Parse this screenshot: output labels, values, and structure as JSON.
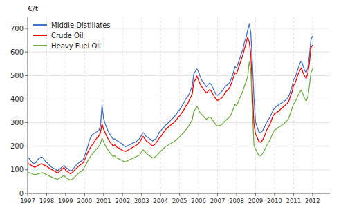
{
  "chart_data": {
    "type": "line",
    "title": "€/t",
    "x": [
      1997,
      1997.0833,
      1997.1667,
      1997.25,
      1997.3333,
      1997.4167,
      1997.5,
      1997.5833,
      1997.6667,
      1997.75,
      1997.8333,
      1997.9167,
      1998,
      1998.0833,
      1998.1667,
      1998.25,
      1998.3333,
      1998.4167,
      1998.5,
      1998.5833,
      1998.6667,
      1998.75,
      1998.8333,
      1998.9167,
      1999,
      1999.0833,
      1999.1667,
      1999.25,
      1999.3333,
      1999.4167,
      1999.5,
      1999.5833,
      1999.6667,
      1999.75,
      1999.8333,
      1999.9167,
      2000,
      2000.0833,
      2000.1667,
      2000.25,
      2000.3333,
      2000.4167,
      2000.5,
      2000.5833,
      2000.6667,
      2000.75,
      2000.8333,
      2000.9167,
      2001,
      2001.0833,
      2001.1667,
      2001.25,
      2001.3333,
      2001.4167,
      2001.5,
      2001.5833,
      2001.6667,
      2001.75,
      2001.8333,
      2001.9167,
      2002,
      2002.0833,
      2002.1667,
      2002.25,
      2002.3333,
      2002.4167,
      2002.5,
      2002.5833,
      2002.6667,
      2002.75,
      2002.8333,
      2002.9167,
      2003,
      2003.0833,
      2003.1667,
      2003.25,
      2003.3333,
      2003.4167,
      2003.5,
      2003.5833,
      2003.6667,
      2003.75,
      2003.8333,
      2003.9167,
      2004,
      2004.0833,
      2004.1667,
      2004.25,
      2004.3333,
      2004.4167,
      2004.5,
      2004.5833,
      2004.6667,
      2004.75,
      2004.8333,
      2004.9167,
      2005,
      2005.0833,
      2005.1667,
      2005.25,
      2005.3333,
      2005.4167,
      2005.5,
      2005.5833,
      2005.6667,
      2005.75,
      2005.8333,
      2005.9167,
      2006,
      2006.0833,
      2006.1667,
      2006.25,
      2006.3333,
      2006.4167,
      2006.5,
      2006.5833,
      2006.6667,
      2006.75,
      2006.8333,
      2006.9167,
      2007,
      2007.0833,
      2007.1667,
      2007.25,
      2007.3333,
      2007.4167,
      2007.5,
      2007.5833,
      2007.6667,
      2007.75,
      2007.8333,
      2007.9167,
      2008,
      2008.0833,
      2008.1667,
      2008.25,
      2008.3333,
      2008.4167,
      2008.5,
      2008.5833,
      2008.6667,
      2008.75,
      2008.8333,
      2008.9167,
      2009,
      2009.0833,
      2009.1667,
      2009.25,
      2009.3333,
      2009.4167,
      2009.5,
      2009.5833,
      2009.6667,
      2009.75,
      2009.8333,
      2009.9167,
      2010,
      2010.0833,
      2010.1667,
      2010.25,
      2010.3333,
      2010.4167,
      2010.5,
      2010.5833,
      2010.6667,
      2010.75,
      2010.8333,
      2010.9167,
      2011,
      2011.0833,
      2011.1667,
      2011.25,
      2011.3333,
      2011.4167,
      2011.5,
      2011.5833,
      2011.6667,
      2011.75,
      2011.8333,
      2011.9167,
      2012
    ],
    "series": [
      {
        "name": "Middle Distillates",
        "color": "#4472C4",
        "values": [
          150,
          148,
          138,
          130,
          128,
          130,
          140,
          148,
          152,
          155,
          148,
          138,
          132,
          126,
          118,
          112,
          108,
          104,
          100,
          97,
          102,
          108,
          114,
          118,
          110,
          106,
          100,
          96,
          98,
          105,
          115,
          122,
          128,
          134,
          138,
          142,
          160,
          178,
          200,
          225,
          240,
          250,
          255,
          260,
          262,
          268,
          285,
          375,
          318,
          295,
          278,
          262,
          250,
          240,
          230,
          232,
          225,
          222,
          218,
          212,
          208,
          200,
          198,
          202,
          205,
          208,
          212,
          215,
          218,
          222,
          228,
          235,
          248,
          258,
          252,
          240,
          238,
          232,
          228,
          222,
          228,
          232,
          242,
          258,
          265,
          272,
          280,
          288,
          295,
          300,
          308,
          315,
          320,
          328,
          336,
          348,
          355,
          365,
          378,
          388,
          402,
          408,
          422,
          438,
          455,
          508,
          518,
          528,
          515,
          496,
          480,
          472,
          462,
          452,
          462,
          468,
          462,
          448,
          432,
          420,
          416,
          422,
          428,
          435,
          445,
          455,
          460,
          465,
          475,
          492,
          512,
          538,
          532,
          552,
          572,
          592,
          612,
          642,
          662,
          692,
          718,
          682,
          552,
          402,
          302,
          282,
          262,
          257,
          262,
          272,
          287,
          302,
          312,
          322,
          337,
          352,
          362,
          368,
          373,
          378,
          382,
          386,
          390,
          396,
          402,
          412,
          432,
          452,
          482,
          492,
          512,
          532,
          552,
          562,
          542,
          522,
          512,
          532,
          582,
          652,
          668
        ]
      },
      {
        "name": "Crude Oil",
        "color": "#FF0000",
        "values": [
          128,
          124,
          120,
          116,
          112,
          112,
          116,
          120,
          124,
          126,
          122,
          118,
          116,
          110,
          106,
          102,
          98,
          94,
          90,
          87,
          92,
          98,
          104,
          110,
          98,
          93,
          88,
          84,
          88,
          94,
          102,
          108,
          114,
          120,
          124,
          130,
          142,
          158,
          174,
          188,
          198,
          208,
          218,
          228,
          238,
          244,
          258,
          295,
          272,
          258,
          242,
          230,
          218,
          210,
          202,
          206,
          198,
          194,
          192,
          186,
          182,
          180,
          178,
          182,
          186,
          190,
          194,
          198,
          202,
          206,
          212,
          220,
          232,
          242,
          232,
          222,
          218,
          212,
          206,
          202,
          206,
          212,
          222,
          234,
          240,
          250,
          260,
          270,
          276,
          282,
          288,
          294,
          298,
          305,
          312,
          322,
          328,
          338,
          348,
          358,
          372,
          378,
          394,
          408,
          422,
          472,
          482,
          498,
          480,
          464,
          452,
          442,
          434,
          426,
          434,
          440,
          434,
          422,
          410,
          400,
          394,
          398,
          402,
          408,
          418,
          430,
          436,
          442,
          454,
          472,
          492,
          512,
          508,
          528,
          548,
          568,
          588,
          614,
          638,
          662,
          642,
          592,
          432,
          292,
          252,
          238,
          222,
          217,
          222,
          234,
          250,
          268,
          280,
          292,
          310,
          328,
          338,
          342,
          346,
          352,
          358,
          364,
          370,
          376,
          382,
          392,
          412,
          430,
          458,
          468,
          488,
          508,
          522,
          532,
          512,
          498,
          488,
          508,
          552,
          618,
          630
        ]
      },
      {
        "name": "Heavy Fuel Oil",
        "color": "#70AD47",
        "values": [
          90,
          88,
          86,
          84,
          80,
          80,
          82,
          84,
          86,
          88,
          86,
          84,
          80,
          76,
          73,
          70,
          67,
          64,
          62,
          60,
          64,
          68,
          72,
          76,
          68,
          64,
          60,
          57,
          60,
          64,
          72,
          78,
          84,
          90,
          94,
          100,
          112,
          124,
          138,
          150,
          160,
          168,
          176,
          185,
          193,
          200,
          210,
          235,
          218,
          204,
          192,
          182,
          172,
          164,
          156,
          160,
          152,
          148,
          146,
          142,
          138,
          136,
          134,
          138,
          142,
          145,
          148,
          150,
          154,
          157,
          160,
          165,
          178,
          185,
          178,
          170,
          165,
          160,
          155,
          150,
          153,
          157,
          164,
          172,
          178,
          185,
          192,
          198,
          202,
          206,
          210,
          214,
          218,
          222,
          228,
          234,
          240,
          248,
          255,
          262,
          270,
          278,
          290,
          300,
          312,
          348,
          358,
          370,
          355,
          342,
          334,
          328,
          320,
          314,
          320,
          324,
          320,
          310,
          300,
          290,
          286,
          288,
          290,
          294,
          302,
          310,
          315,
          320,
          328,
          342,
          360,
          378,
          372,
          388,
          404,
          418,
          434,
          456,
          474,
          494,
          558,
          524,
          352,
          202,
          188,
          174,
          162,
          160,
          165,
          175,
          188,
          202,
          215,
          225,
          240,
          258,
          268,
          272,
          278,
          282,
          286,
          292,
          296,
          304,
          310,
          320,
          340,
          360,
          380,
          388,
          402,
          418,
          430,
          438,
          420,
          402,
          392,
          408,
          454,
          512,
          528
        ]
      }
    ],
    "xlim": [
      1997.0,
      2012.9167
    ],
    "xticks": [
      1997,
      1998,
      1999,
      2000,
      2001,
      2002,
      2003,
      2004,
      2005,
      2006,
      2007,
      2008,
      2009,
      2010,
      2011,
      2012
    ],
    "ylim": [
      0,
      750
    ],
    "yticks": [
      0,
      100,
      200,
      300,
      400,
      500,
      600,
      700
    ],
    "grid": true,
    "legend": "upper left"
  }
}
